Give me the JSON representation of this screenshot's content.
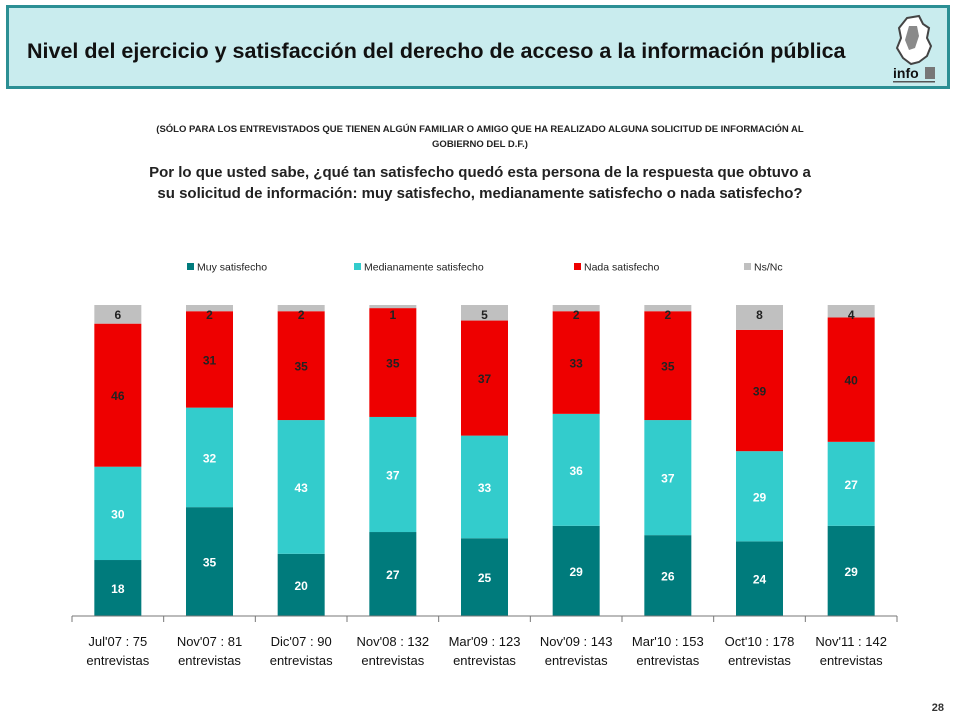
{
  "header": {
    "title": "Nivel del ejercicio y satisfacción del derecho de acceso a la información pública",
    "logo_text": "info"
  },
  "subnote": "(SÓLO PARA LOS ENTREVISTADOS QUE TIENEN ALGÚN FAMILIAR O AMIGO QUE HA REALIZADO ALGUNA SOLICITUD DE INFORMACIÓN AL GOBIERNO DEL D.F.)",
  "question": "Por lo que usted sabe, ¿qué tan satisfecho quedó esta persona de la respuesta que obtuvo a su solicitud de información: muy satisfecho, medianamente satisfecho o nada satisfecho?",
  "page_number": "28",
  "colors": {
    "muy": "#007b7c",
    "medianamente": "#33cccc",
    "nada": "#ee0000",
    "nsnc": "#c0c0c0",
    "title_bg": "#c9ecee",
    "title_border": "#2b8f94"
  },
  "chart_data": {
    "type": "bar",
    "stacked": true,
    "categories": [
      [
        "Jul'07 : 75",
        "entrevistas"
      ],
      [
        "Nov'07 : 81",
        "entrevistas"
      ],
      [
        "Dic'07 : 90",
        "entrevistas"
      ],
      [
        "Nov'08 : 132",
        "entrevistas"
      ],
      [
        "Mar'09 : 123",
        "entrevistas"
      ],
      [
        "Nov'09 : 143",
        "entrevistas"
      ],
      [
        "Mar'10 : 153",
        "entrevistas"
      ],
      [
        "Oct'10 : 178",
        "entrevistas"
      ],
      [
        "Nov'11 : 142",
        "entrevistas"
      ]
    ],
    "series": [
      {
        "name": "Muy satisfecho",
        "color": "#007b7c",
        "label_color": "#ffffff",
        "values": [
          18,
          35,
          20,
          27,
          25,
          29,
          26,
          24,
          29
        ]
      },
      {
        "name": "Medianamente satisfecho",
        "color": "#33cccc",
        "label_color": "#ffffff",
        "values": [
          30,
          32,
          43,
          37,
          33,
          36,
          37,
          29,
          27
        ]
      },
      {
        "name": "Nada satisfecho",
        "color": "#ee0000",
        "label_color": "#222222",
        "values": [
          46,
          31,
          35,
          35,
          37,
          33,
          35,
          39,
          40
        ]
      },
      {
        "name": "Ns/Nc",
        "color": "#c0c0c0",
        "label_color": "#222222",
        "values": [
          6,
          2,
          2,
          1,
          5,
          2,
          2,
          8,
          4
        ]
      }
    ],
    "legend_position": "top",
    "grid": false,
    "ylim": [
      0,
      100
    ]
  }
}
